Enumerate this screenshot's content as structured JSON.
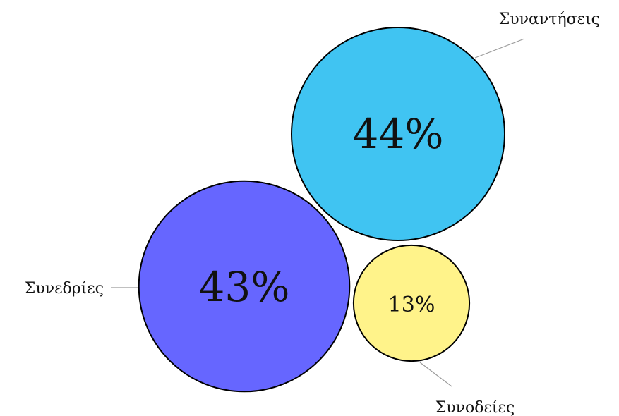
{
  "chart_data": {
    "type": "bubble",
    "title": "",
    "unit": "%",
    "series": [
      {
        "category": "Συναντήσεις",
        "value": 44,
        "color": "#40C4F2"
      },
      {
        "category": "Συνεδρίες",
        "value": 43,
        "color": "#6666FF"
      },
      {
        "category": "Συνοδείες",
        "value": 13,
        "color": "#FFF38A"
      }
    ]
  }
}
